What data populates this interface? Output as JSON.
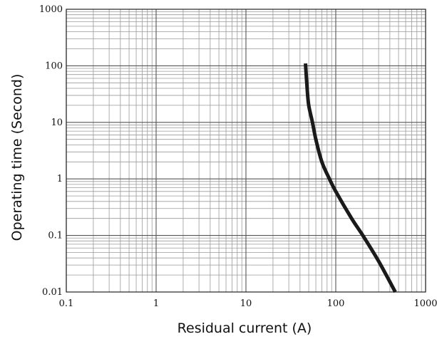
{
  "chart_data": {
    "type": "line",
    "title": "",
    "xlabel": "Residual current (A)",
    "ylabel": "Operating time (Second)",
    "x_scale": "log",
    "y_scale": "log",
    "xlim": [
      0.1,
      1000
    ],
    "ylim": [
      0.01,
      1000
    ],
    "grid": true,
    "legend": "none",
    "x_ticks": [
      {
        "value": 0.1,
        "label": "0.1"
      },
      {
        "value": 1,
        "label": "1"
      },
      {
        "value": 10,
        "label": "10"
      },
      {
        "value": 100,
        "label": "100"
      },
      {
        "value": 1000,
        "label": "1000"
      }
    ],
    "y_ticks": [
      {
        "value": 0.01,
        "label": "0.01"
      },
      {
        "value": 0.1,
        "label": "0.1"
      },
      {
        "value": 1,
        "label": "1"
      },
      {
        "value": 10,
        "label": "10"
      },
      {
        "value": 100,
        "label": "100"
      },
      {
        "value": 1000,
        "label": "1000"
      }
    ],
    "series": [
      {
        "color": "#1a1a1a",
        "points": [
          {
            "x": 46,
            "y": 110
          },
          {
            "x": 48,
            "y": 40
          },
          {
            "x": 50,
            "y": 20
          },
          {
            "x": 55,
            "y": 10
          },
          {
            "x": 60,
            "y": 5
          },
          {
            "x": 70,
            "y": 2
          },
          {
            "x": 85,
            "y": 1
          },
          {
            "x": 100,
            "y": 0.6
          },
          {
            "x": 150,
            "y": 0.2
          },
          {
            "x": 200,
            "y": 0.1
          },
          {
            "x": 300,
            "y": 0.035
          },
          {
            "x": 460,
            "y": 0.01
          }
        ]
      }
    ],
    "colors": {
      "grid": "#9a9a9a",
      "axis": "#222222",
      "line": "#1a1a1a"
    }
  }
}
